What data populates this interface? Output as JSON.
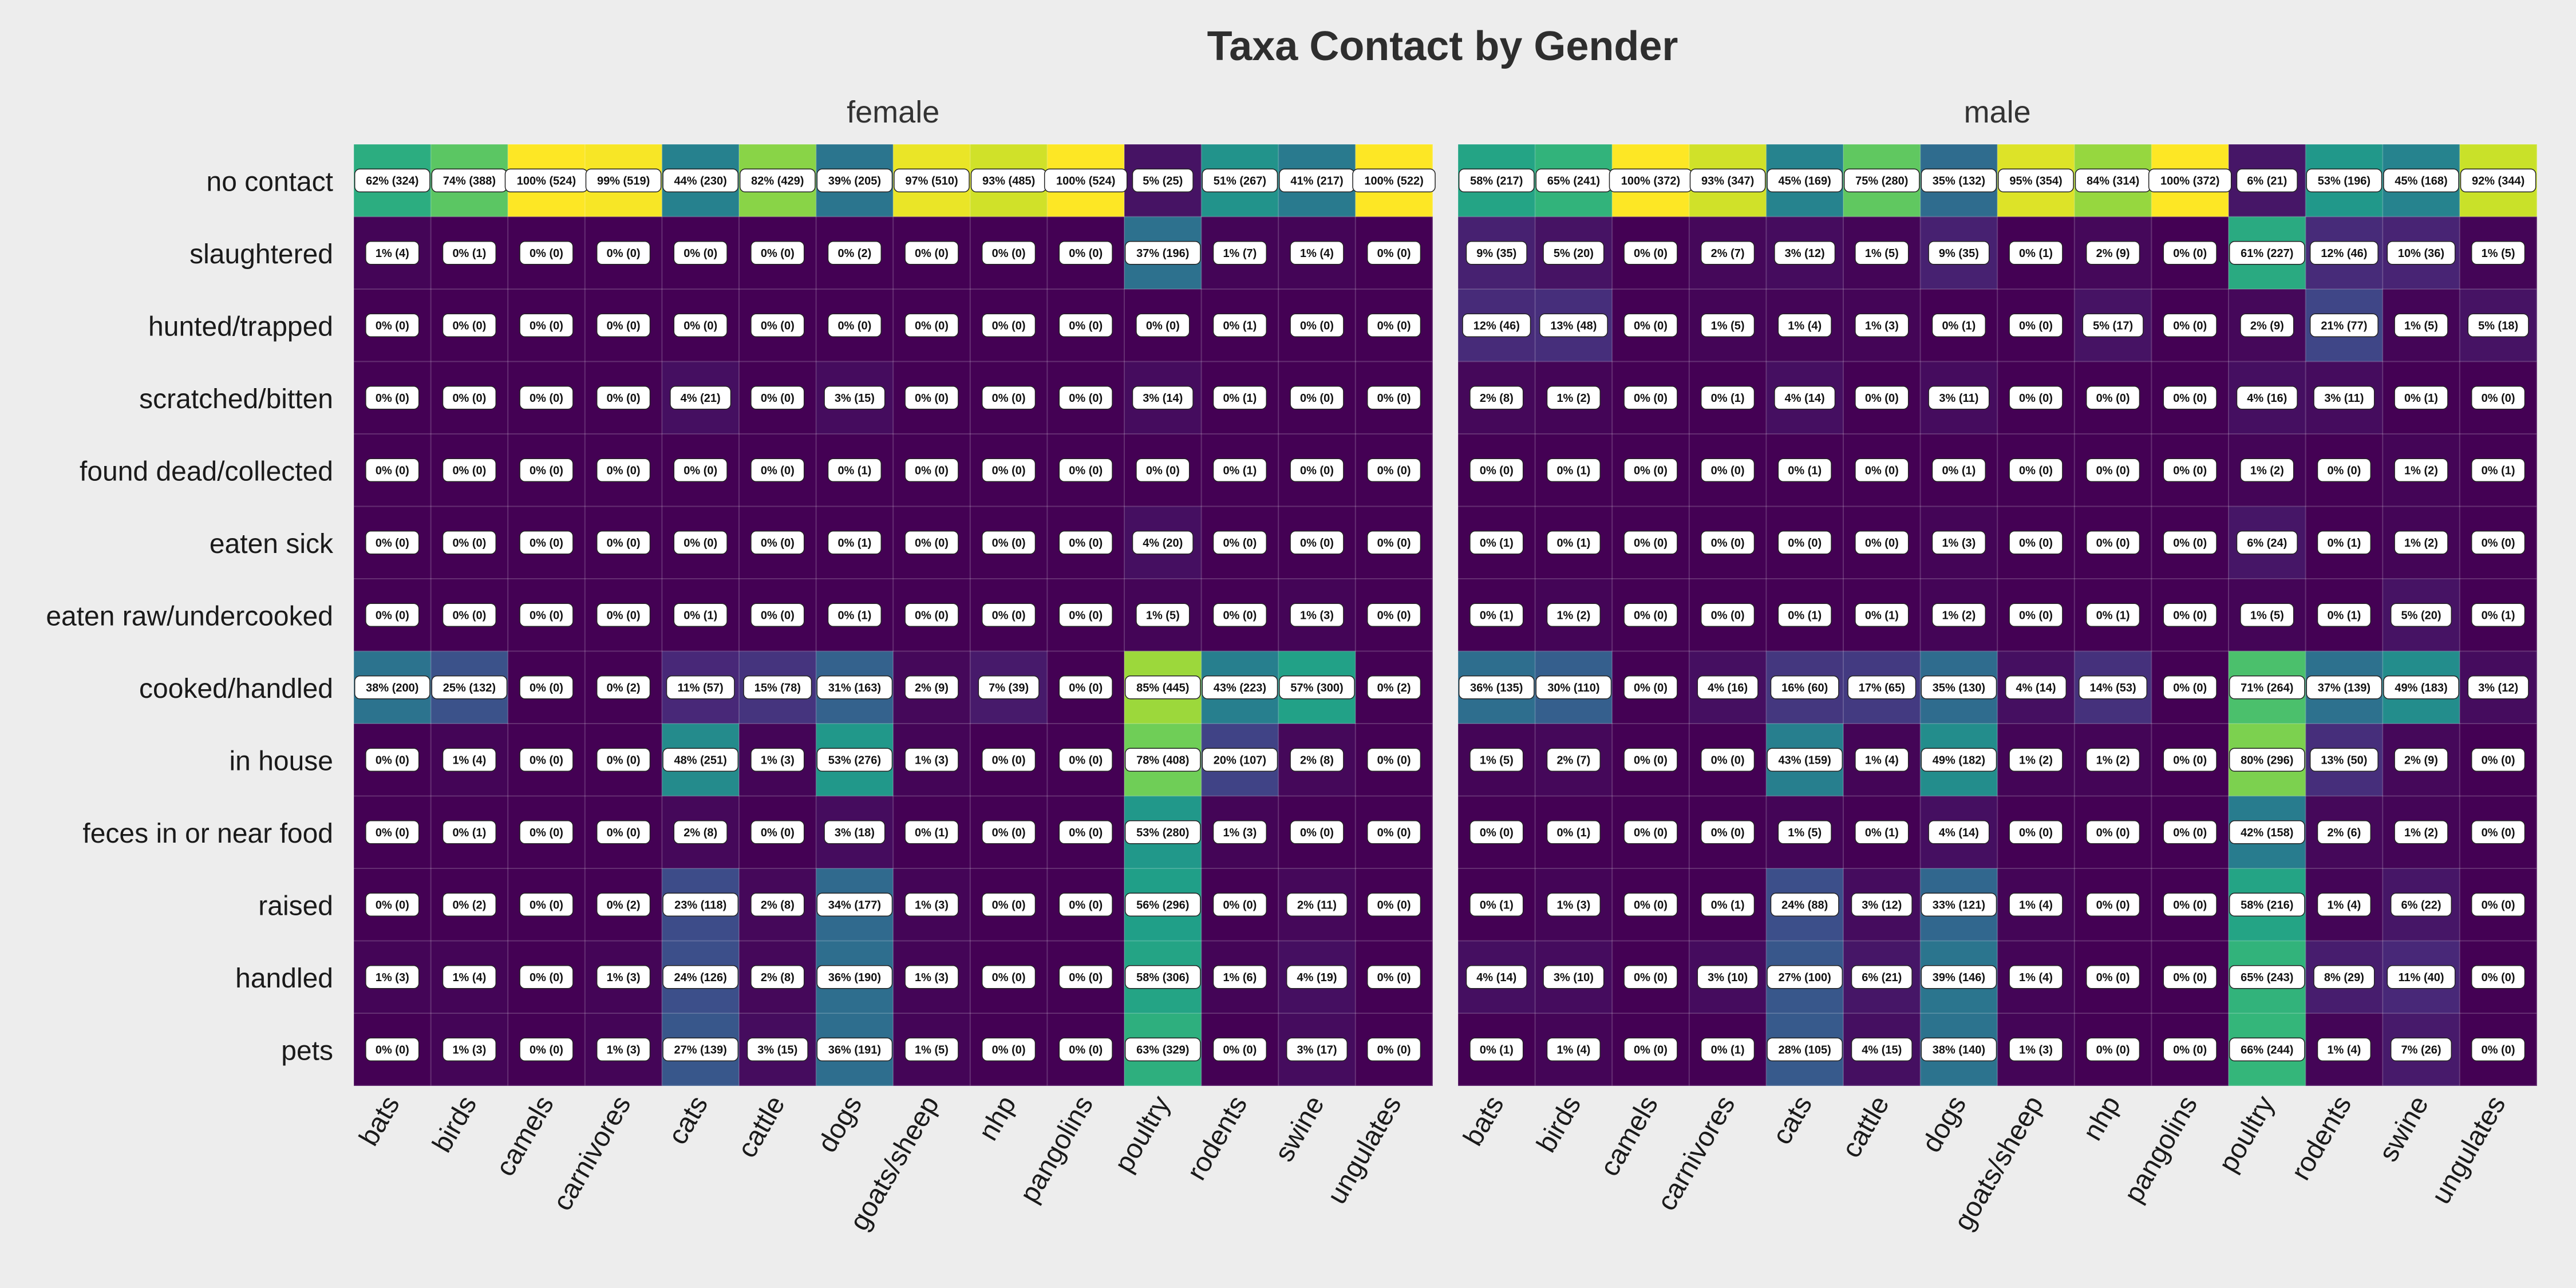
{
  "chart_data": {
    "type": "heatmap",
    "title": "Taxa Contact by Gender",
    "xlabel": "",
    "ylabel": "",
    "color_scale": "viridis",
    "colors": {
      "background": "#ededed",
      "label_box": "#ffffff",
      "title": "#2e2e2e"
    },
    "rows": [
      "no contact",
      "slaughtered",
      "hunted/trapped",
      "scratched/bitten",
      "found dead/collected",
      "eaten sick",
      "eaten raw/undercooked",
      "cooked/handled",
      "in house",
      "feces in or near food",
      "raised",
      "handled",
      "pets"
    ],
    "columns": [
      "bats",
      "birds",
      "camels",
      "carnivores",
      "cats",
      "cattle",
      "dogs",
      "goats/sheep",
      "nhp",
      "pangolins",
      "poultry",
      "rodents",
      "swine",
      "ungulates"
    ],
    "panels": [
      {
        "name": "female",
        "labels": [
          [
            "62% (324)",
            "74% (388)",
            "100% (524)",
            "99% (519)",
            "44% (230)",
            "82% (429)",
            "39% (205)",
            "97% (510)",
            "93% (485)",
            "100% (524)",
            "5% (25)",
            "51% (267)",
            "41% (217)",
            "100% (522)"
          ],
          [
            "1% (4)",
            "0% (1)",
            "0% (0)",
            "0% (0)",
            "0% (0)",
            "0% (0)",
            "0% (2)",
            "0% (0)",
            "0% (0)",
            "0% (0)",
            "37% (196)",
            "1% (7)",
            "1% (4)",
            "0% (0)"
          ],
          [
            "0% (0)",
            "0% (0)",
            "0% (0)",
            "0% (0)",
            "0% (0)",
            "0% (0)",
            "0% (0)",
            "0% (0)",
            "0% (0)",
            "0% (0)",
            "0% (0)",
            "0% (1)",
            "0% (0)",
            "0% (0)"
          ],
          [
            "0% (0)",
            "0% (0)",
            "0% (0)",
            "0% (0)",
            "4% (21)",
            "0% (0)",
            "3% (15)",
            "0% (0)",
            "0% (0)",
            "0% (0)",
            "3% (14)",
            "0% (1)",
            "0% (0)",
            "0% (0)"
          ],
          [
            "0% (0)",
            "0% (0)",
            "0% (0)",
            "0% (0)",
            "0% (0)",
            "0% (0)",
            "0% (1)",
            "0% (0)",
            "0% (0)",
            "0% (0)",
            "0% (0)",
            "0% (1)",
            "0% (0)",
            "0% (0)"
          ],
          [
            "0% (0)",
            "0% (0)",
            "0% (0)",
            "0% (0)",
            "0% (0)",
            "0% (0)",
            "0% (1)",
            "0% (0)",
            "0% (0)",
            "0% (0)",
            "4% (20)",
            "0% (0)",
            "0% (0)",
            "0% (0)"
          ],
          [
            "0% (0)",
            "0% (0)",
            "0% (0)",
            "0% (0)",
            "0% (1)",
            "0% (0)",
            "0% (1)",
            "0% (0)",
            "0% (0)",
            "0% (0)",
            "1% (5)",
            "0% (0)",
            "1% (3)",
            "0% (0)"
          ],
          [
            "38% (200)",
            "25% (132)",
            "0% (0)",
            "0% (2)",
            "11% (57)",
            "15% (78)",
            "31% (163)",
            "2% (9)",
            "7% (39)",
            "0% (0)",
            "85% (445)",
            "43% (223)",
            "57% (300)",
            "0% (2)"
          ],
          [
            "0% (0)",
            "1% (4)",
            "0% (0)",
            "0% (0)",
            "48% (251)",
            "1% (3)",
            "53% (276)",
            "1% (3)",
            "0% (0)",
            "0% (0)",
            "78% (408)",
            "20% (107)",
            "2% (8)",
            "0% (0)"
          ],
          [
            "0% (0)",
            "0% (1)",
            "0% (0)",
            "0% (0)",
            "2% (8)",
            "0% (0)",
            "3% (18)",
            "0% (1)",
            "0% (0)",
            "0% (0)",
            "53% (280)",
            "1% (3)",
            "0% (0)",
            "0% (0)"
          ],
          [
            "0% (0)",
            "0% (2)",
            "0% (0)",
            "0% (2)",
            "23% (118)",
            "2% (8)",
            "34% (177)",
            "1% (3)",
            "0% (0)",
            "0% (0)",
            "56% (296)",
            "0% (0)",
            "2% (11)",
            "0% (0)"
          ],
          [
            "1% (3)",
            "1% (4)",
            "0% (0)",
            "1% (3)",
            "24% (126)",
            "2% (8)",
            "36% (190)",
            "1% (3)",
            "0% (0)",
            "0% (0)",
            "58% (306)",
            "1% (6)",
            "4% (19)",
            "0% (0)"
          ],
          [
            "0% (0)",
            "1% (3)",
            "0% (0)",
            "1% (3)",
            "27% (139)",
            "3% (15)",
            "36% (191)",
            "1% (5)",
            "0% (0)",
            "0% (0)",
            "63% (329)",
            "0% (0)",
            "3% (17)",
            "0% (0)"
          ]
        ]
      },
      {
        "name": "male",
        "labels": [
          [
            "58% (217)",
            "65% (241)",
            "100% (372)",
            "93% (347)",
            "45% (169)",
            "75% (280)",
            "35% (132)",
            "95% (354)",
            "84% (314)",
            "100% (372)",
            "6% (21)",
            "53% (196)",
            "45% (168)",
            "92% (344)"
          ],
          [
            "9% (35)",
            "5% (20)",
            "0% (0)",
            "2% (7)",
            "3% (12)",
            "1% (5)",
            "9% (35)",
            "0% (1)",
            "2% (9)",
            "0% (0)",
            "61% (227)",
            "12% (46)",
            "10% (36)",
            "1% (5)"
          ],
          [
            "12% (46)",
            "13% (48)",
            "0% (0)",
            "1% (5)",
            "1% (4)",
            "1% (3)",
            "0% (1)",
            "0% (0)",
            "5% (17)",
            "0% (0)",
            "2% (9)",
            "21% (77)",
            "1% (5)",
            "5% (18)"
          ],
          [
            "2% (8)",
            "1% (2)",
            "0% (0)",
            "0% (1)",
            "4% (14)",
            "0% (0)",
            "3% (11)",
            "0% (0)",
            "0% (0)",
            "0% (0)",
            "4% (16)",
            "3% (11)",
            "0% (1)",
            "0% (0)"
          ],
          [
            "0% (0)",
            "0% (1)",
            "0% (0)",
            "0% (0)",
            "0% (1)",
            "0% (0)",
            "0% (1)",
            "0% (0)",
            "0% (0)",
            "0% (0)",
            "1% (2)",
            "0% (0)",
            "1% (2)",
            "0% (1)"
          ],
          [
            "0% (1)",
            "0% (1)",
            "0% (0)",
            "0% (0)",
            "0% (0)",
            "0% (0)",
            "1% (3)",
            "0% (0)",
            "0% (0)",
            "0% (0)",
            "6% (24)",
            "0% (1)",
            "1% (2)",
            "0% (0)"
          ],
          [
            "0% (1)",
            "1% (2)",
            "0% (0)",
            "0% (0)",
            "0% (1)",
            "0% (1)",
            "1% (2)",
            "0% (0)",
            "0% (1)",
            "0% (0)",
            "1% (5)",
            "0% (1)",
            "5% (20)",
            "0% (1)"
          ],
          [
            "36% (135)",
            "30% (110)",
            "0% (0)",
            "4% (16)",
            "16% (60)",
            "17% (65)",
            "35% (130)",
            "4% (14)",
            "14% (53)",
            "0% (0)",
            "71% (264)",
            "37% (139)",
            "49% (183)",
            "3% (12)"
          ],
          [
            "1% (5)",
            "2% (7)",
            "0% (0)",
            "0% (0)",
            "43% (159)",
            "1% (4)",
            "49% (182)",
            "1% (2)",
            "1% (2)",
            "0% (0)",
            "80% (296)",
            "13% (50)",
            "2% (9)",
            "0% (0)"
          ],
          [
            "0% (0)",
            "0% (1)",
            "0% (0)",
            "0% (0)",
            "1% (5)",
            "0% (1)",
            "4% (14)",
            "0% (0)",
            "0% (0)",
            "0% (0)",
            "42% (158)",
            "2% (6)",
            "1% (2)",
            "0% (0)"
          ],
          [
            "0% (1)",
            "1% (3)",
            "0% (0)",
            "0% (1)",
            "24% (88)",
            "3% (12)",
            "33% (121)",
            "1% (4)",
            "0% (0)",
            "0% (0)",
            "58% (216)",
            "1% (4)",
            "6% (22)",
            "0% (0)"
          ],
          [
            "4% (14)",
            "3% (10)",
            "0% (0)",
            "3% (10)",
            "27% (100)",
            "6% (21)",
            "39% (146)",
            "1% (4)",
            "0% (0)",
            "0% (0)",
            "65% (243)",
            "8% (29)",
            "11% (40)",
            "0% (0)"
          ],
          [
            "0% (1)",
            "1% (4)",
            "0% (0)",
            "0% (1)",
            "28% (105)",
            "4% (15)",
            "38% (140)",
            "1% (3)",
            "0% (0)",
            "0% (0)",
            "66% (244)",
            "1% (4)",
            "7% (26)",
            "0% (0)"
          ]
        ]
      }
    ]
  }
}
